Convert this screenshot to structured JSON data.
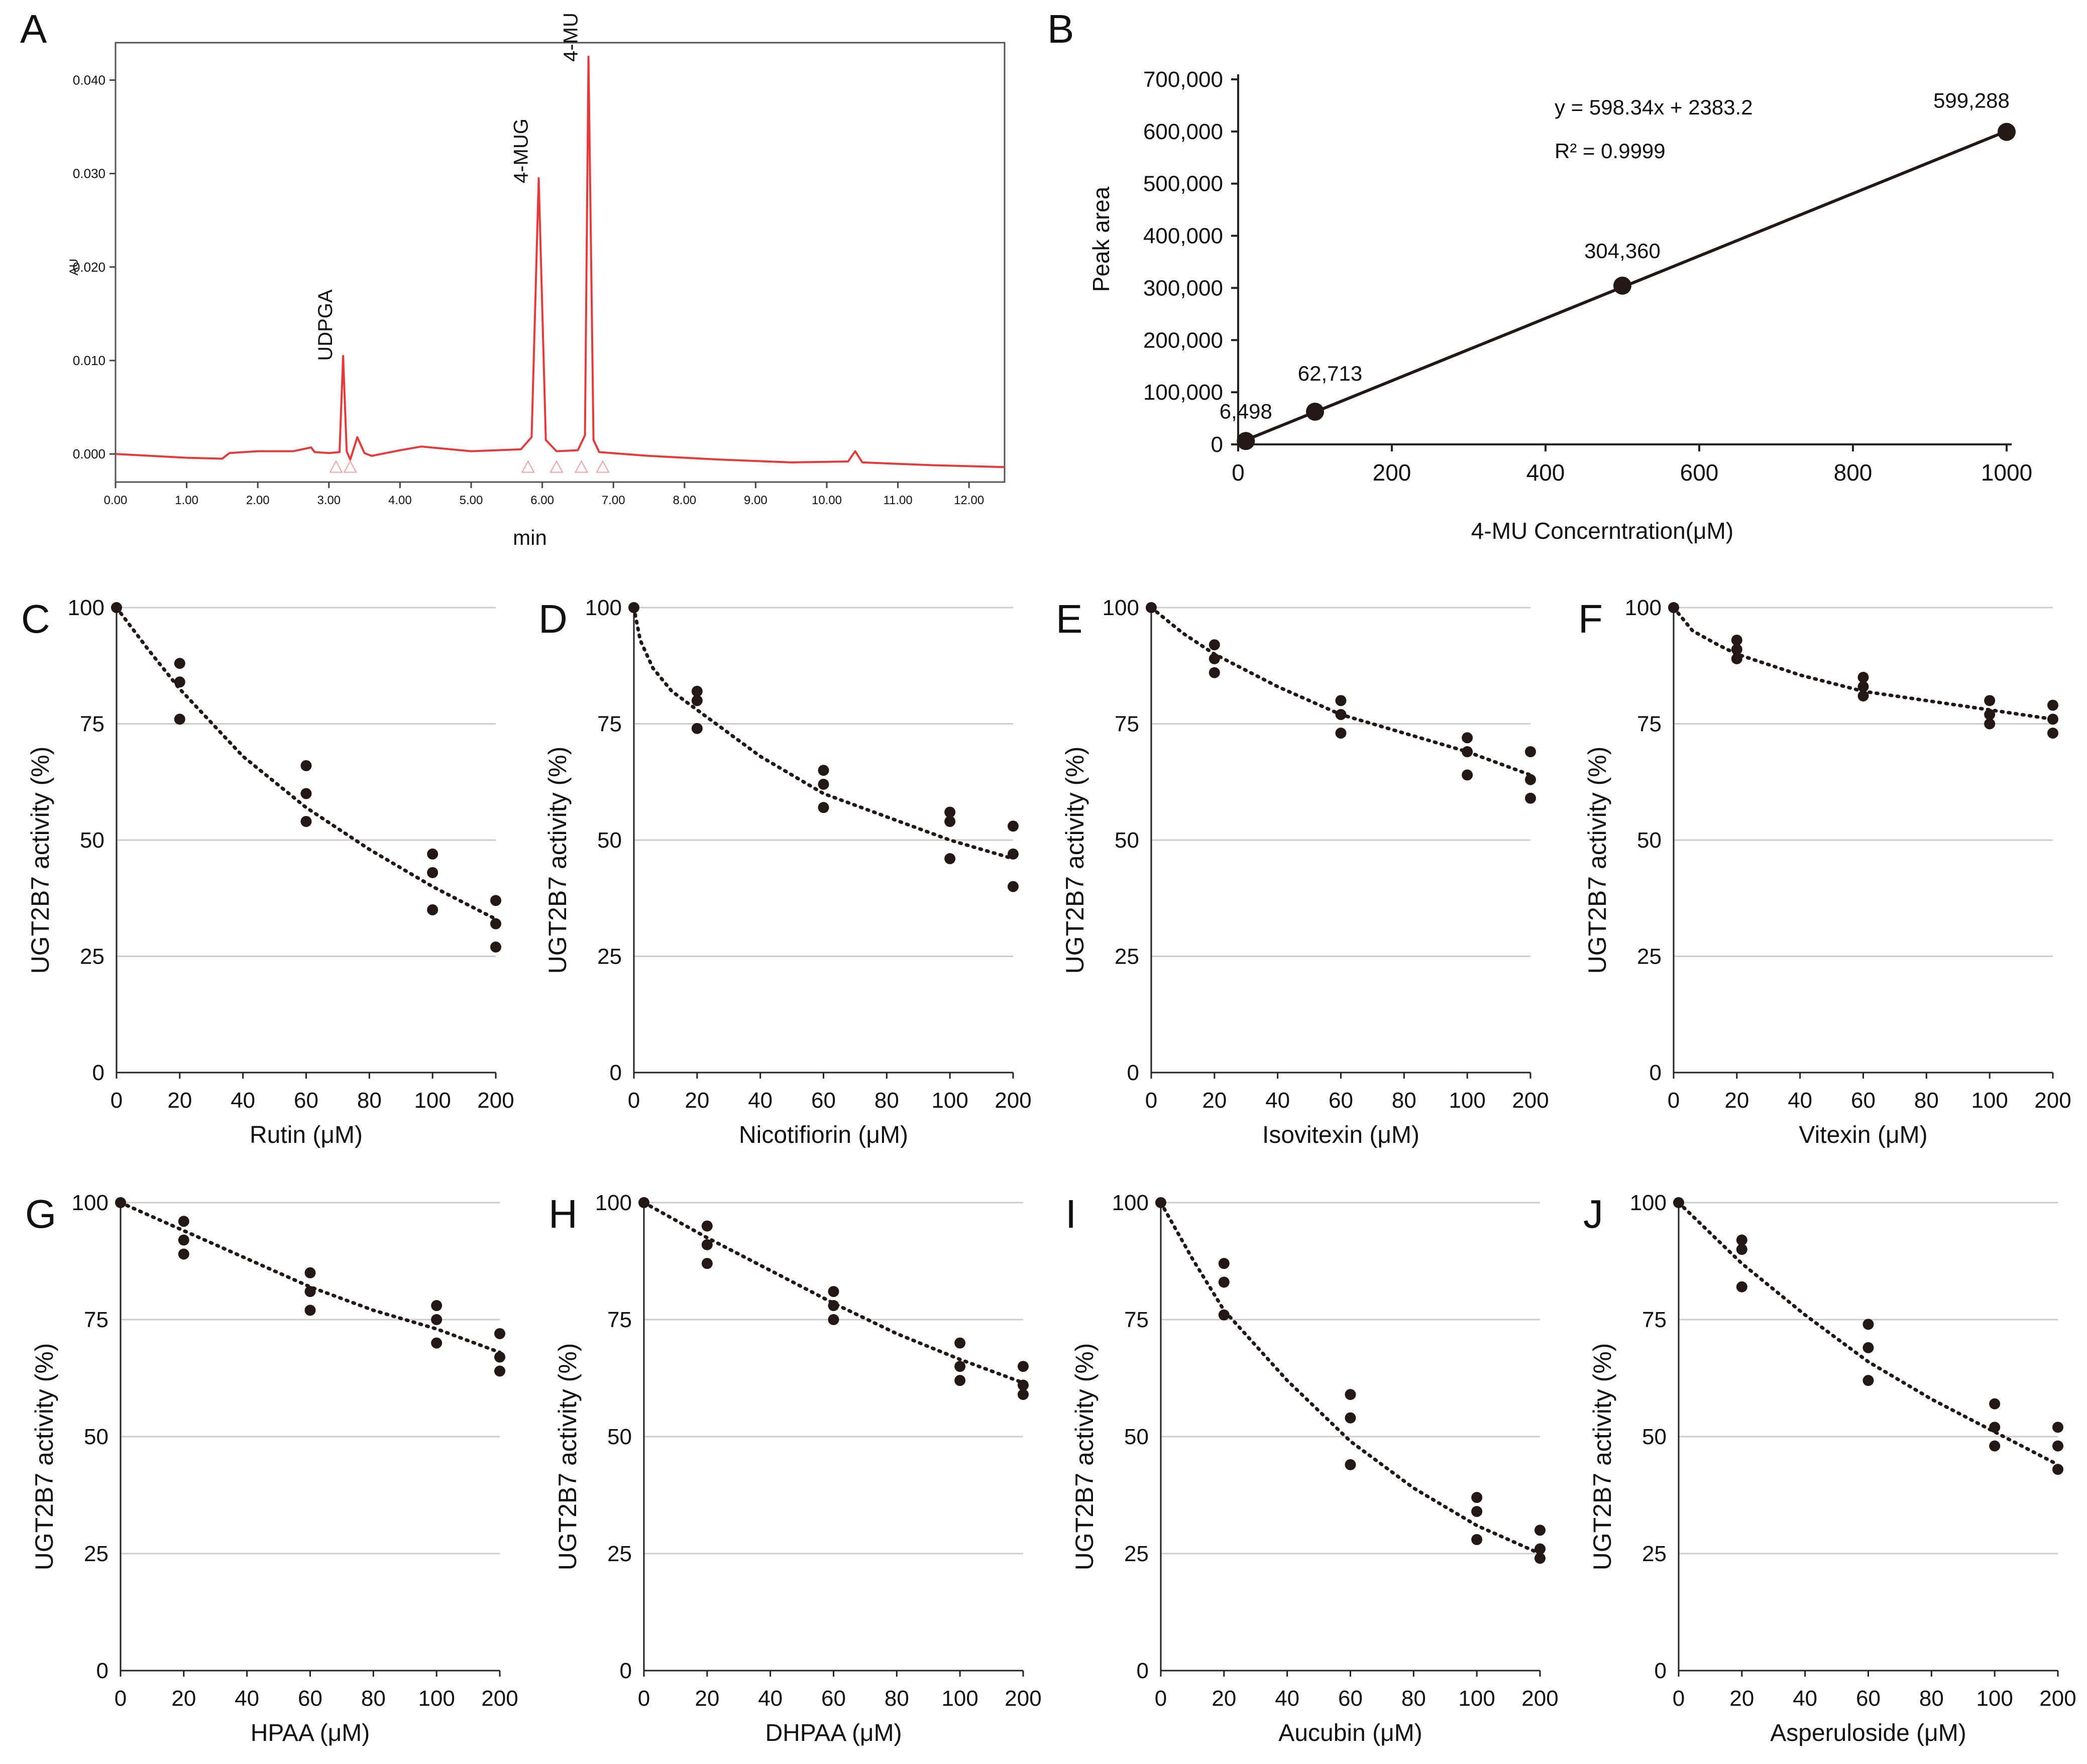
{
  "colors": {
    "trace": "#e63a3a",
    "dot": "#231815",
    "grid": "#cccccc",
    "axis": "#222222"
  },
  "panelA": {
    "letter": "A",
    "title": "",
    "xlabel": "min",
    "ylabel": "AU",
    "xticks": [
      "0.00",
      "1.00",
      "2.00",
      "3.00",
      "4.00",
      "5.00",
      "6.00",
      "7.00",
      "8.00",
      "9.00",
      "10.00",
      "11.00",
      "12.00"
    ],
    "yticks": [
      "0.000",
      "0.010",
      "0.020",
      "0.030",
      "0.040"
    ],
    "peaks": [
      {
        "label": "UDPGA",
        "rt": 3.2,
        "height": 0.0105
      },
      {
        "label": "4-MUG",
        "rt": 5.95,
        "height": 0.0295
      },
      {
        "label": "4-MU",
        "rt": 6.65,
        "height": 0.0425
      }
    ]
  },
  "chart_data": [
    {
      "id": "A",
      "type": "line",
      "title": "",
      "xlabel": "min",
      "ylabel": "AU",
      "xlim": [
        0,
        12.5
      ],
      "ylim": [
        -0.003,
        0.044
      ],
      "series": [
        {
          "name": "chromatogram",
          "x": [
            0,
            1,
            1.5,
            1.6,
            2.0,
            2.5,
            2.75,
            2.8,
            3.0,
            3.15,
            3.2,
            3.25,
            3.3,
            3.4,
            3.5,
            3.6,
            4.0,
            4.3,
            5.0,
            5.7,
            5.85,
            5.95,
            6.05,
            6.2,
            6.5,
            6.6,
            6.65,
            6.72,
            6.8,
            7.5,
            8.5,
            9.5,
            10.3,
            10.4,
            10.5,
            11.5,
            12.5
          ],
          "y": [
            0.0,
            -0.0004,
            -0.0005,
            0.0001,
            0.0003,
            0.0003,
            0.0007,
            0.0002,
            0.0001,
            0.0002,
            0.0105,
            0.0003,
            -0.0006,
            0.0018,
            0.0001,
            -0.0002,
            0.0004,
            0.0008,
            0.0003,
            0.0005,
            0.0018,
            0.0295,
            0.0015,
            0.0003,
            0.0004,
            0.002,
            0.0425,
            0.0015,
            0.0002,
            -0.0002,
            -0.0006,
            -0.0009,
            -0.0008,
            0.0003,
            -0.0009,
            -0.0012,
            -0.0014
          ]
        }
      ]
    },
    {
      "id": "B",
      "type": "scatter",
      "title": "",
      "xlabel": "4-MU Concerntration(μM)",
      "ylabel": "Peak area",
      "xlim": [
        0,
        1000
      ],
      "ylim": [
        0,
        700000
      ],
      "xticks": [
        0,
        200,
        400,
        600,
        800,
        1000
      ],
      "yticks": [
        0,
        100000,
        200000,
        300000,
        400000,
        500000,
        600000,
        700000
      ],
      "ytick_labels": [
        "0",
        "100,000",
        "200,000",
        "300,000",
        "400,000",
        "500,000",
        "600,000",
        "700,000"
      ],
      "x": [
        10,
        100,
        500,
        1000
      ],
      "y": [
        6498,
        62713,
        304360,
        599288
      ],
      "point_labels": [
        "6,498",
        "62,713",
        "304,360",
        "599,288"
      ],
      "fit": {
        "slope": 598.34,
        "intercept": 2383.2
      },
      "annotations": [
        "y = 598.34x + 2383.2",
        "R² = 0.9999"
      ]
    },
    {
      "id": "C",
      "type": "scatter",
      "xlabel": "Rutin (μM)",
      "ylabel": "UGT2B7 activity (%)",
      "ylim": [
        0,
        100
      ],
      "categories": [
        "0",
        "20",
        "40",
        "60",
        "80",
        "100",
        "200"
      ],
      "yticks": [
        0,
        25,
        50,
        75,
        100
      ],
      "points": [
        [
          0,
          100
        ],
        [
          1,
          88
        ],
        [
          1,
          84
        ],
        [
          1,
          76
        ],
        [
          3,
          66
        ],
        [
          3,
          60
        ],
        [
          3,
          54
        ],
        [
          5,
          47
        ],
        [
          5,
          43
        ],
        [
          5,
          35
        ],
        [
          6,
          37
        ],
        [
          6,
          32
        ],
        [
          6,
          27
        ]
      ],
      "fit": [
        [
          0,
          100
        ],
        [
          0.5,
          91
        ],
        [
          1,
          82.5
        ],
        [
          2,
          68
        ],
        [
          3,
          57
        ],
        [
          4,
          48
        ],
        [
          5,
          40
        ],
        [
          6,
          33
        ]
      ]
    },
    {
      "id": "D",
      "type": "scatter",
      "xlabel": "Nicotifiorin (μM)",
      "ylabel": "UGT2B7 activity (%)",
      "ylim": [
        0,
        100
      ],
      "categories": [
        "0",
        "20",
        "40",
        "60",
        "80",
        "100",
        "200"
      ],
      "yticks": [
        0,
        25,
        50,
        75,
        100
      ],
      "points": [
        [
          0,
          100
        ],
        [
          1,
          82
        ],
        [
          1,
          80
        ],
        [
          1,
          74
        ],
        [
          3,
          65
        ],
        [
          3,
          62
        ],
        [
          3,
          57
        ],
        [
          5,
          56
        ],
        [
          5,
          54
        ],
        [
          5,
          46
        ],
        [
          6,
          53
        ],
        [
          6,
          47
        ],
        [
          6,
          40
        ]
      ],
      "fit": [
        [
          0,
          100
        ],
        [
          0.1,
          93
        ],
        [
          0.3,
          87
        ],
        [
          0.6,
          82
        ],
        [
          1,
          78
        ],
        [
          2,
          68
        ],
        [
          3,
          60
        ],
        [
          4,
          55
        ],
        [
          5,
          50
        ],
        [
          6,
          46
        ]
      ]
    },
    {
      "id": "E",
      "type": "scatter",
      "xlabel": "Isovitexin (μM)",
      "ylabel": "UGT2B7 activity (%)",
      "ylim": [
        0,
        100
      ],
      "categories": [
        "0",
        "20",
        "40",
        "60",
        "80",
        "100",
        "200"
      ],
      "yticks": [
        0,
        25,
        50,
        75,
        100
      ],
      "points": [
        [
          0,
          100
        ],
        [
          1,
          92
        ],
        [
          1,
          89
        ],
        [
          1,
          86
        ],
        [
          3,
          80
        ],
        [
          3,
          77
        ],
        [
          3,
          73
        ],
        [
          5,
          72
        ],
        [
          5,
          69
        ],
        [
          5,
          64
        ],
        [
          6,
          69
        ],
        [
          6,
          63
        ],
        [
          6,
          59
        ]
      ],
      "fit": [
        [
          0,
          100
        ],
        [
          0.5,
          94.5
        ],
        [
          1,
          90
        ],
        [
          2,
          83
        ],
        [
          3,
          77
        ],
        [
          4,
          73
        ],
        [
          5,
          69
        ],
        [
          6,
          64
        ]
      ]
    },
    {
      "id": "F",
      "type": "scatter",
      "xlabel": "Vitexin (μM)",
      "ylabel": "UGT2B7 activity (%)",
      "ylim": [
        0,
        100
      ],
      "categories": [
        "0",
        "20",
        "40",
        "60",
        "80",
        "100",
        "200"
      ],
      "yticks": [
        0,
        25,
        50,
        75,
        100
      ],
      "points": [
        [
          0,
          100
        ],
        [
          1,
          93
        ],
        [
          1,
          91
        ],
        [
          1,
          89
        ],
        [
          3,
          85
        ],
        [
          3,
          83
        ],
        [
          3,
          81
        ],
        [
          5,
          80
        ],
        [
          5,
          77
        ],
        [
          5,
          75
        ],
        [
          6,
          79
        ],
        [
          6,
          76
        ],
        [
          6,
          73
        ]
      ],
      "fit": [
        [
          0,
          100
        ],
        [
          0.3,
          95
        ],
        [
          0.7,
          92
        ],
        [
          1,
          90
        ],
        [
          2,
          85.5
        ],
        [
          3,
          82
        ],
        [
          4,
          80
        ],
        [
          5,
          78
        ],
        [
          6,
          76
        ]
      ]
    },
    {
      "id": "G",
      "type": "scatter",
      "xlabel": "HPAA (μM)",
      "ylabel": "UGT2B7 activity (%)",
      "ylim": [
        0,
        100
      ],
      "categories": [
        "0",
        "20",
        "40",
        "60",
        "80",
        "100",
        "200"
      ],
      "yticks": [
        0,
        25,
        50,
        75,
        100
      ],
      "points": [
        [
          0,
          100
        ],
        [
          1,
          96
        ],
        [
          1,
          92
        ],
        [
          1,
          89
        ],
        [
          3,
          85
        ],
        [
          3,
          81
        ],
        [
          3,
          77
        ],
        [
          5,
          78
        ],
        [
          5,
          75
        ],
        [
          5,
          70
        ],
        [
          6,
          72
        ],
        [
          6,
          67
        ],
        [
          6,
          64
        ]
      ],
      "fit": [
        [
          0,
          100
        ],
        [
          1,
          94
        ],
        [
          2,
          88
        ],
        [
          3,
          82
        ],
        [
          4,
          77
        ],
        [
          5,
          73
        ],
        [
          6,
          68
        ]
      ]
    },
    {
      "id": "H",
      "type": "scatter",
      "xlabel": "DHPAA (μM)",
      "ylabel": "UGT2B7 activity (%)",
      "ylim": [
        0,
        100
      ],
      "categories": [
        "0",
        "20",
        "40",
        "60",
        "80",
        "100",
        "200"
      ],
      "yticks": [
        0,
        25,
        50,
        75,
        100
      ],
      "points": [
        [
          0,
          100
        ],
        [
          1,
          95
        ],
        [
          1,
          91
        ],
        [
          1,
          87
        ],
        [
          3,
          81
        ],
        [
          3,
          78
        ],
        [
          3,
          75
        ],
        [
          5,
          70
        ],
        [
          5,
          65
        ],
        [
          5,
          62
        ],
        [
          6,
          65
        ],
        [
          6,
          61
        ],
        [
          6,
          59
        ]
      ],
      "fit": [
        [
          0,
          100
        ],
        [
          1,
          92.5
        ],
        [
          2,
          85.5
        ],
        [
          3,
          78.5
        ],
        [
          4,
          72
        ],
        [
          5,
          66.5
        ],
        [
          6,
          61.5
        ]
      ]
    },
    {
      "id": "I",
      "type": "scatter",
      "xlabel": "Aucubin (μM)",
      "ylabel": "UGT2B7 activity (%)",
      "ylim": [
        0,
        100
      ],
      "categories": [
        "0",
        "20",
        "40",
        "60",
        "80",
        "100",
        "200"
      ],
      "yticks": [
        0,
        25,
        50,
        75,
        100
      ],
      "points": [
        [
          0,
          100
        ],
        [
          1,
          87
        ],
        [
          1,
          83
        ],
        [
          1,
          76
        ],
        [
          3,
          59
        ],
        [
          3,
          54
        ],
        [
          3,
          44
        ],
        [
          5,
          37
        ],
        [
          5,
          34
        ],
        [
          5,
          28
        ],
        [
          6,
          30
        ],
        [
          6,
          26
        ],
        [
          6,
          24
        ]
      ],
      "fit": [
        [
          0,
          100
        ],
        [
          0.5,
          88
        ],
        [
          1,
          77
        ],
        [
          2,
          62
        ],
        [
          3,
          49
        ],
        [
          4,
          39
        ],
        [
          5,
          31
        ],
        [
          6,
          25
        ]
      ]
    },
    {
      "id": "J",
      "type": "scatter",
      "xlabel": "Asperuloside (μM)",
      "ylabel": "UGT2B7 activity (%)",
      "ylim": [
        0,
        100
      ],
      "categories": [
        "0",
        "20",
        "40",
        "60",
        "80",
        "100",
        "200"
      ],
      "yticks": [
        0,
        25,
        50,
        75,
        100
      ],
      "points": [
        [
          0,
          100
        ],
        [
          1,
          92
        ],
        [
          1,
          90
        ],
        [
          1,
          82
        ],
        [
          3,
          74
        ],
        [
          3,
          69
        ],
        [
          3,
          62
        ],
        [
          5,
          57
        ],
        [
          5,
          52
        ],
        [
          5,
          48
        ],
        [
          6,
          52
        ],
        [
          6,
          48
        ],
        [
          6,
          43
        ]
      ],
      "fit": [
        [
          0,
          100
        ],
        [
          0.5,
          93.5
        ],
        [
          1,
          87
        ],
        [
          2,
          76
        ],
        [
          3,
          66
        ],
        [
          4,
          58
        ],
        [
          5,
          51
        ],
        [
          6,
          44
        ]
      ]
    }
  ]
}
